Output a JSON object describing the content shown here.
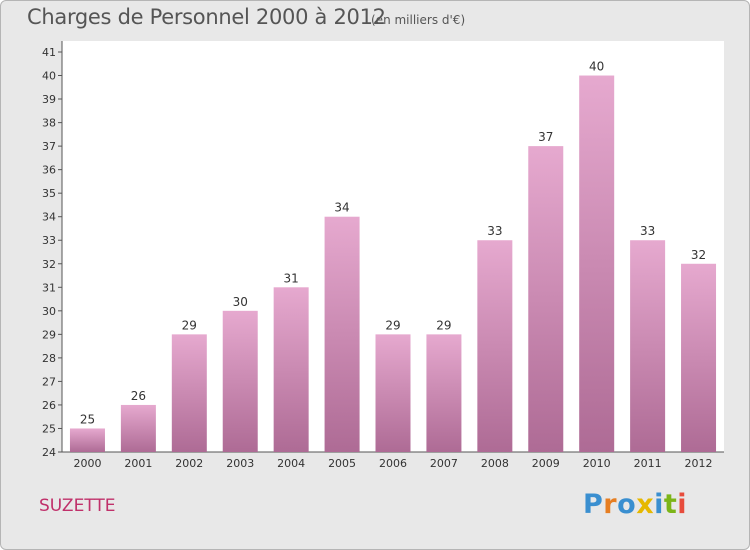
{
  "header": {
    "title": "Charges de Personnel 2000 à 2012",
    "subtitle": "(en milliers d'€)"
  },
  "footer": {
    "commune": "SUZETTE",
    "logo_text": "Proxiti"
  },
  "colors": {
    "background": "#e8e8e8",
    "plot_background": "#ffffff",
    "bar_top": "#e6a9cf",
    "bar_bottom": "#ae6b95",
    "commune": "#c0306a",
    "logo_letters": [
      "#3a8fd0",
      "#e67e22",
      "#3a8fd0",
      "#e6b800",
      "#3a8fd0",
      "#7cb518",
      "#e74c3c"
    ]
  },
  "chart_data": {
    "type": "bar",
    "title": "Charges de Personnel 2000 à 2012",
    "subtitle": "(en milliers d'€)",
    "xlabel": "",
    "ylabel": "",
    "categories": [
      "2000",
      "2001",
      "2002",
      "2003",
      "2004",
      "2005",
      "2006",
      "2007",
      "2008",
      "2009",
      "2010",
      "2011",
      "2012"
    ],
    "values": [
      25,
      26,
      29,
      30,
      31,
      34,
      29,
      29,
      33,
      37,
      40,
      33,
      32
    ],
    "ylim": [
      24,
      41
    ],
    "yticks": [
      24,
      25,
      26,
      27,
      28,
      29,
      30,
      31,
      32,
      33,
      34,
      35,
      36,
      37,
      38,
      39,
      40,
      41
    ],
    "grid": false,
    "legend": "none"
  }
}
